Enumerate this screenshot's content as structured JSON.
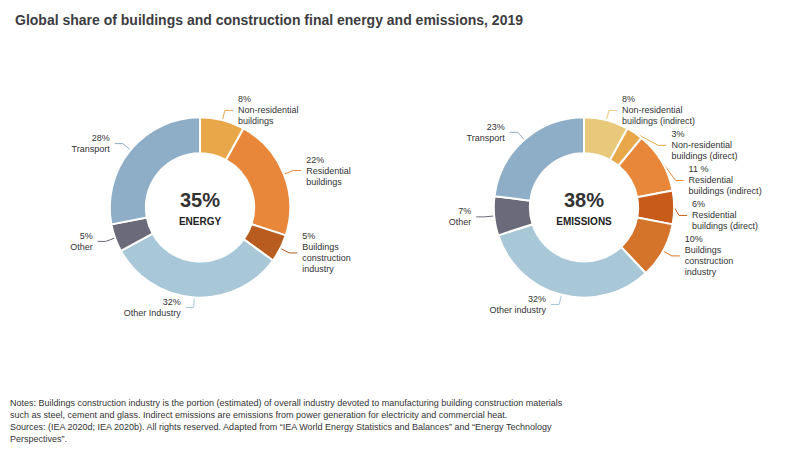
{
  "title": "Global share of buildings and construction final energy and emissions, 2019",
  "annotations": [
    "Notes: Buildings construction industry is the portion (estimated) of overall industry devoted to manufacturing building construction materials",
    "such as steel, cement and glass. Indirect emissions are emissions from power generation for electricity and commercial heat.",
    "Sources: (IEA 2020d; IEA 2020b). All rights reserved. Adapted from “IEA World Energy Statistics and Balances” and “Energy Technology",
    "Perspectives”."
  ],
  "chart_data": [
    {
      "type": "pie",
      "title": "ENERGY",
      "annotations": [
        "35%"
      ],
      "categories": [
        "Non-residential buildings",
        "Residential buildings",
        "Buildings construction industry",
        "Other Industry",
        "Other",
        "Transport"
      ],
      "values": [
        8,
        22,
        5,
        32,
        5,
        28
      ],
      "value_labels": [
        "8%",
        "22%",
        "5%",
        "32%",
        "5%",
        "28%"
      ],
      "colors": [
        "#e8a84a",
        "#e8873a",
        "#b85c20",
        "#a8c8d8",
        "#6a6a7a",
        "#8eaec8"
      ],
      "data_labels": true
    },
    {
      "type": "pie",
      "title": "EMISSIONS",
      "annotations": [
        "38%"
      ],
      "categories": [
        "Non-residential buildings (indirect)",
        "Non-residential buildings (direct)",
        "Residential buildings (indirect)",
        "Residential buildings (direct)",
        "Buildings construction industry",
        "Other industry",
        "Other",
        "Transport"
      ],
      "values": [
        8,
        3,
        11,
        6,
        10,
        32,
        7,
        23
      ],
      "value_labels": [
        "8%",
        "3%",
        "11 %",
        "6%",
        "10%",
        "32%",
        "7%",
        "23%"
      ],
      "colors": [
        "#e8c87a",
        "#e8a84a",
        "#e8873a",
        "#c85a1a",
        "#d4732a",
        "#a8c8d8",
        "#6a6a7a",
        "#8eaec8"
      ],
      "data_labels": true
    }
  ]
}
